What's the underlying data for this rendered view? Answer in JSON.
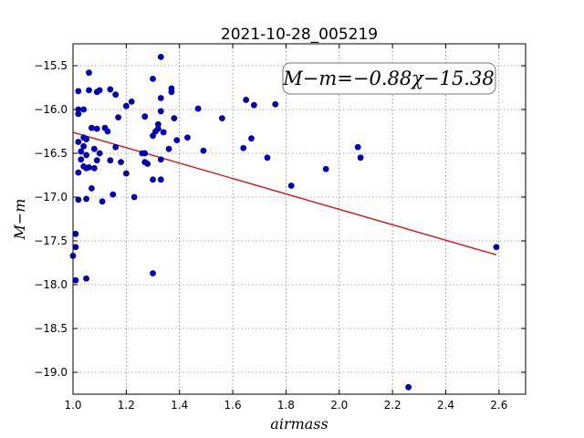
{
  "chart_data": {
    "type": "scatter",
    "title": "2021-10-28_005219",
    "xlabel": "airmass",
    "ylabel": "M−m",
    "xlim": [
      1.0,
      2.7
    ],
    "ylim": [
      -19.25,
      -15.25
    ],
    "y_inverted": true,
    "xticks": [
      1.0,
      1.2,
      1.4,
      1.6,
      1.8,
      2.0,
      2.2,
      2.4,
      2.6
    ],
    "xtick_labels": [
      "1.0",
      "1.2",
      "1.4",
      "1.6",
      "1.8",
      "2.0",
      "2.2",
      "2.4",
      "2.6"
    ],
    "yticks": [
      -15.5,
      -16.0,
      -16.5,
      -17.0,
      -17.5,
      -18.0,
      -18.5,
      -19.0
    ],
    "ytick_labels": [
      "−15.5",
      "−16.0",
      "−16.5",
      "−17.0",
      "−17.5",
      "−18.0",
      "−18.5",
      "−19.0"
    ],
    "grid": true,
    "annotation": "M−m=−0.88χ−15.38",
    "fit": {
      "slope": -0.88,
      "intercept": -15.38,
      "x_range": [
        1.0,
        2.59
      ],
      "color": "#e00000"
    },
    "marker_color": "#0000bb",
    "points": [
      [
        1.0,
        -17.67
      ],
      [
        1.01,
        -17.95
      ],
      [
        1.01,
        -17.42
      ],
      [
        1.01,
        -17.57
      ],
      [
        1.02,
        -15.79
      ],
      [
        1.02,
        -16.05
      ],
      [
        1.02,
        -16.0
      ],
      [
        1.02,
        -16.37
      ],
      [
        1.02,
        -16.72
      ],
      [
        1.02,
        -17.03
      ],
      [
        1.03,
        -16.57
      ],
      [
        1.03,
        -16.48
      ],
      [
        1.04,
        -16.0
      ],
      [
        1.04,
        -16.32
      ],
      [
        1.04,
        -16.42
      ],
      [
        1.04,
        -16.65
      ],
      [
        1.05,
        -16.52
      ],
      [
        1.05,
        -16.34
      ],
      [
        1.05,
        -16.67
      ],
      [
        1.05,
        -17.02
      ],
      [
        1.05,
        -17.93
      ],
      [
        1.06,
        -15.58
      ],
      [
        1.06,
        -15.78
      ],
      [
        1.06,
        -16.66
      ],
      [
        1.07,
        -16.21
      ],
      [
        1.07,
        -16.9
      ],
      [
        1.08,
        -16.45
      ],
      [
        1.08,
        -16.67
      ],
      [
        1.09,
        -15.8
      ],
      [
        1.09,
        -16.58
      ],
      [
        1.09,
        -16.22
      ],
      [
        1.1,
        -15.78
      ],
      [
        1.1,
        -16.5
      ],
      [
        1.11,
        -17.05
      ],
      [
        1.12,
        -16.21
      ],
      [
        1.13,
        -16.25
      ],
      [
        1.14,
        -15.77
      ],
      [
        1.14,
        -16.58
      ],
      [
        1.15,
        -16.97
      ],
      [
        1.16,
        -15.83
      ],
      [
        1.16,
        -16.43
      ],
      [
        1.17,
        -16.09
      ],
      [
        1.18,
        -16.6
      ],
      [
        1.2,
        -15.96
      ],
      [
        1.2,
        -16.73
      ],
      [
        1.22,
        -15.91
      ],
      [
        1.23,
        -17.0
      ],
      [
        1.26,
        -16.5
      ],
      [
        1.27,
        -16.08
      ],
      [
        1.27,
        -16.5
      ],
      [
        1.27,
        -16.6
      ],
      [
        1.28,
        -16.62
      ],
      [
        1.3,
        -15.65
      ],
      [
        1.3,
        -16.3
      ],
      [
        1.3,
        -16.8
      ],
      [
        1.3,
        -17.87
      ],
      [
        1.31,
        -16.25
      ],
      [
        1.32,
        -16.22
      ],
      [
        1.32,
        -16.17
      ],
      [
        1.33,
        -16.57
      ],
      [
        1.33,
        -15.87
      ],
      [
        1.33,
        -16.02
      ],
      [
        1.33,
        -16.8
      ],
      [
        1.33,
        -15.4
      ],
      [
        1.34,
        -16.26
      ],
      [
        1.36,
        -16.45
      ],
      [
        1.37,
        -15.76
      ],
      [
        1.37,
        -15.8
      ],
      [
        1.38,
        -16.1
      ],
      [
        1.39,
        -16.35
      ],
      [
        1.43,
        -16.32
      ],
      [
        1.47,
        -15.99
      ],
      [
        1.49,
        -16.47
      ],
      [
        1.56,
        -16.1
      ],
      [
        1.64,
        -16.44
      ],
      [
        1.65,
        -15.89
      ],
      [
        1.67,
        -16.33
      ],
      [
        1.68,
        -15.95
      ],
      [
        1.73,
        -16.55
      ],
      [
        1.76,
        -15.94
      ],
      [
        1.82,
        -16.87
      ],
      [
        1.95,
        -16.68
      ],
      [
        2.07,
        -16.43
      ],
      [
        2.08,
        -16.55
      ],
      [
        2.26,
        -19.17
      ],
      [
        2.59,
        -17.57
      ]
    ]
  }
}
